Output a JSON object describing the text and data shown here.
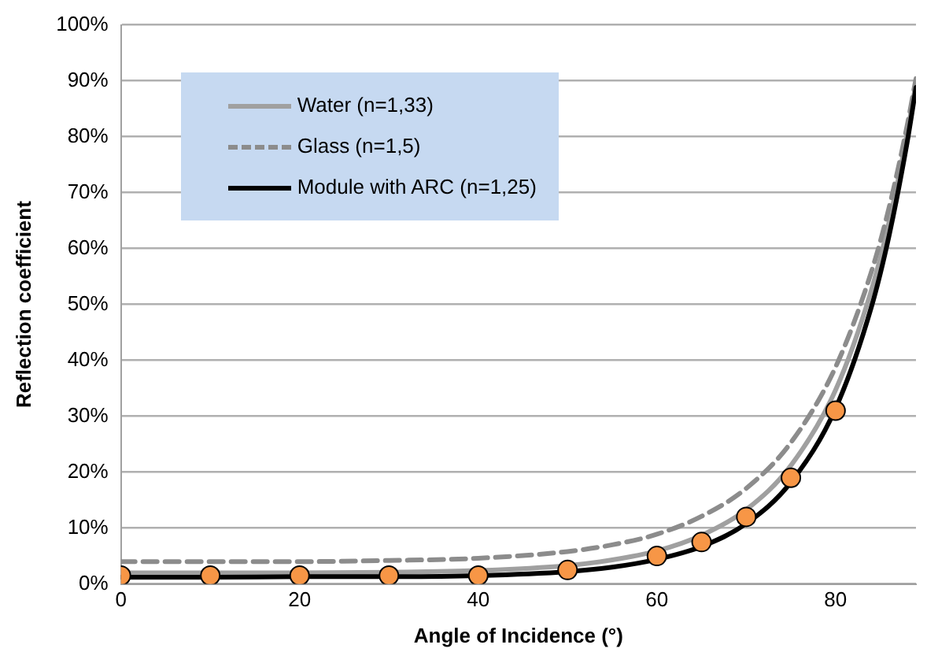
{
  "chart_data": {
    "type": "line",
    "xlabel": "Angle of Incidence (°)",
    "ylabel": "Reflection coefficient",
    "x": [
      0,
      10,
      20,
      30,
      40,
      50,
      55,
      60,
      65,
      70,
      75,
      80,
      84,
      86,
      88,
      89
    ],
    "xlim": [
      0,
      89
    ],
    "xticks": [
      0,
      20,
      40,
      60,
      80
    ],
    "ylim": [
      0,
      100
    ],
    "yticks": [
      {
        "value": 0,
        "label": "0%"
      },
      {
        "value": 10,
        "label": "10%"
      },
      {
        "value": 20,
        "label": "20%"
      },
      {
        "value": 30,
        "label": "30%"
      },
      {
        "value": 40,
        "label": "40%"
      },
      {
        "value": 50,
        "label": "50%"
      },
      {
        "value": 60,
        "label": "60%"
      },
      {
        "value": 70,
        "label": "70%"
      },
      {
        "value": 80,
        "label": "80%"
      },
      {
        "value": 90,
        "label": "90%"
      },
      {
        "value": 100,
        "label": "100%"
      }
    ],
    "grid": "y",
    "legend": "top left",
    "marker": "none",
    "series": [
      {
        "name": "Water (n=1,33)",
        "color": "#a0a0a0",
        "line_style": "solid",
        "values": [
          2.0,
          2.0,
          2.0,
          2.1,
          2.4,
          3.3,
          4.3,
          5.9,
          8.7,
          13.3,
          21.2,
          34.7,
          52.5,
          64.8,
          80.4,
          89.6
        ]
      },
      {
        "name": "Glass (n=1,5)",
        "color": "#8c8c8c",
        "line_style": "dashed",
        "values": [
          4.0,
          4.0,
          4.0,
          4.2,
          4.6,
          5.8,
          7.0,
          8.9,
          12.1,
          17.1,
          25.3,
          38.8,
          55.8,
          67.4,
          81.9,
          90.4
        ]
      },
      {
        "name": "Module with ARC (n=1,25)",
        "color": "#000000",
        "line_style": "solid",
        "values": [
          1.2,
          1.2,
          1.3,
          1.3,
          1.5,
          2.2,
          3.0,
          4.4,
          6.7,
          10.8,
          18.2,
          31.4,
          49.5,
          62.4,
          78.9,
          88.8
        ]
      },
      {
        "type": "scatter",
        "color": "#f79646",
        "marker": "circle",
        "x": [
          0,
          10,
          20,
          30,
          40,
          50,
          60,
          65,
          70,
          75,
          80
        ],
        "values": [
          1.5,
          1.5,
          1.5,
          1.5,
          1.5,
          2.5,
          5,
          7.5,
          12,
          19,
          31
        ]
      }
    ]
  }
}
